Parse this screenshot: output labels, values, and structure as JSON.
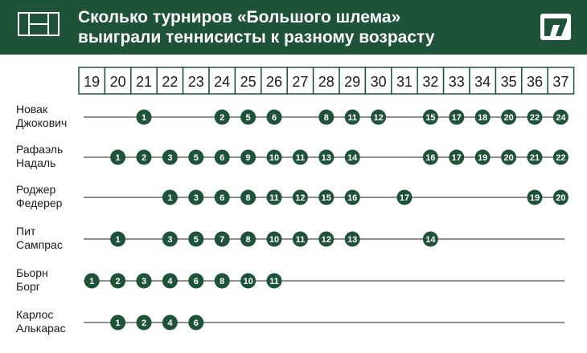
{
  "header": {
    "title_line1": "Сколько турниров «Большого шлема»",
    "title_line2": "выиграли теннисисты к разному возрасту",
    "bg_color": "#1f5339"
  },
  "icons": {
    "left": "tennis-court-icon",
    "right": "brand-logo-icon"
  },
  "chart_data": {
    "type": "table",
    "x_label": "",
    "ages": [
      19,
      20,
      21,
      22,
      23,
      24,
      25,
      26,
      27,
      28,
      29,
      30,
      31,
      32,
      33,
      34,
      35,
      36,
      37
    ],
    "series": [
      {
        "name_line1": "Новак",
        "name_line2": "Джокович",
        "line_from": 19,
        "line_to": 37,
        "points": [
          [
            21,
            1
          ],
          [
            24,
            2
          ],
          [
            25,
            5
          ],
          [
            26,
            6
          ],
          [
            28,
            8
          ],
          [
            29,
            11
          ],
          [
            30,
            12
          ],
          [
            32,
            15
          ],
          [
            33,
            17
          ],
          [
            34,
            18
          ],
          [
            35,
            20
          ],
          [
            36,
            22
          ],
          [
            37,
            24
          ]
        ]
      },
      {
        "name_line1": "Рафаэль",
        "name_line2": "Надаль",
        "line_from": 19,
        "line_to": 37,
        "points": [
          [
            20,
            1
          ],
          [
            21,
            2
          ],
          [
            22,
            3
          ],
          [
            23,
            5
          ],
          [
            24,
            6
          ],
          [
            25,
            9
          ],
          [
            26,
            10
          ],
          [
            27,
            11
          ],
          [
            28,
            13
          ],
          [
            29,
            14
          ],
          [
            32,
            16
          ],
          [
            33,
            17
          ],
          [
            34,
            19
          ],
          [
            35,
            20
          ],
          [
            36,
            21
          ],
          [
            37,
            22
          ]
        ]
      },
      {
        "name_line1": "Роджер",
        "name_line2": "Федерер",
        "line_from": 19,
        "line_to": 37,
        "points": [
          [
            22,
            1
          ],
          [
            23,
            3
          ],
          [
            24,
            6
          ],
          [
            25,
            8
          ],
          [
            26,
            11
          ],
          [
            27,
            12
          ],
          [
            28,
            15
          ],
          [
            29,
            16
          ],
          [
            31,
            17
          ],
          [
            36,
            19
          ],
          [
            37,
            20
          ]
        ]
      },
      {
        "name_line1": "Пит",
        "name_line2": "Сампрас",
        "line_from": 19,
        "line_to": 37,
        "points": [
          [
            20,
            1
          ],
          [
            22,
            3
          ],
          [
            23,
            5
          ],
          [
            24,
            7
          ],
          [
            25,
            8
          ],
          [
            26,
            10
          ],
          [
            27,
            11
          ],
          [
            28,
            12
          ],
          [
            29,
            13
          ],
          [
            32,
            14
          ]
        ]
      },
      {
        "name_line1": "Бьорн",
        "name_line2": "Борг",
        "line_from": 19,
        "line_to": 37,
        "points": [
          [
            19,
            1
          ],
          [
            20,
            2
          ],
          [
            21,
            3
          ],
          [
            22,
            4
          ],
          [
            23,
            6
          ],
          [
            24,
            8
          ],
          [
            25,
            10
          ],
          [
            26,
            11
          ]
        ]
      },
      {
        "name_line1": "Карлос",
        "name_line2": "Алькарас",
        "line_from": 19,
        "line_to": 37,
        "points": [
          [
            20,
            1
          ],
          [
            21,
            2
          ],
          [
            22,
            4
          ],
          [
            23,
            6
          ]
        ]
      }
    ],
    "dot_color": "#1f5339",
    "line_color": "#4a4a4a",
    "grid_color": "#1f5339"
  }
}
